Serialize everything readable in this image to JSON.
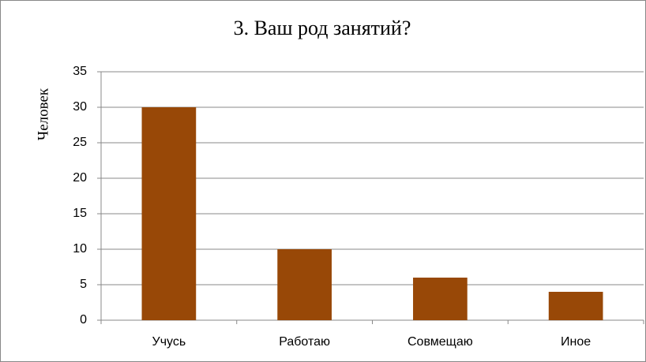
{
  "chart_data": {
    "type": "bar",
    "title": "3. Ваш род занятий?",
    "y_label": "Человек",
    "categories": [
      "Учусь",
      "Работаю",
      "Совмещаю",
      "Иное"
    ],
    "values": [
      30,
      10,
      6,
      4
    ],
    "color": "#984807",
    "ylim": [
      0,
      35
    ],
    "yticks": [
      0,
      5,
      10,
      15,
      20,
      25,
      30,
      35
    ],
    "grid": true
  }
}
